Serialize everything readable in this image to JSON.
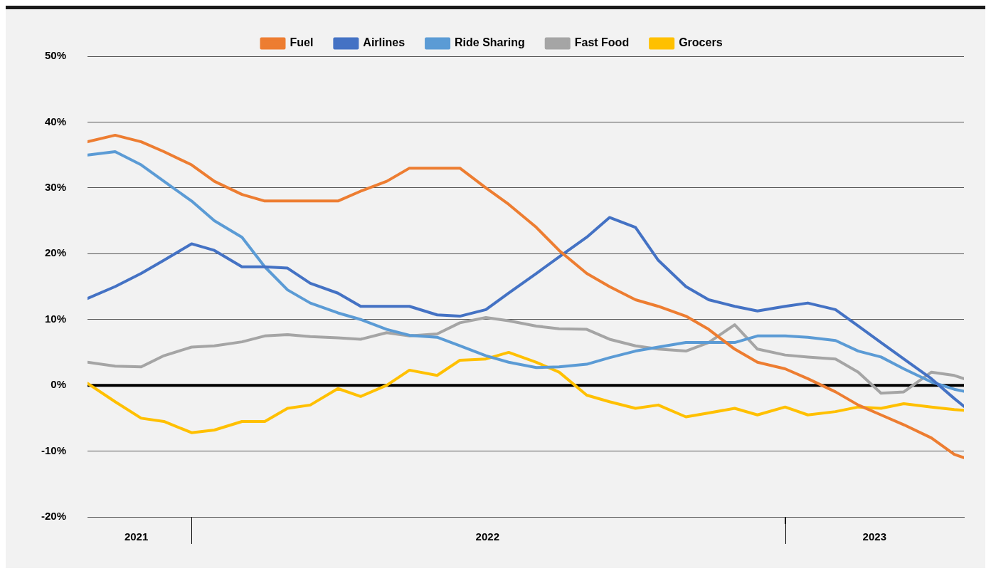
{
  "chart_data": {
    "type": "line",
    "legend": "top",
    "grid": "y",
    "line_style": "solid",
    "x": [
      "2021-10-29",
      "2021-11-15",
      "2021-12-01",
      "2021-12-15",
      "2022-01-01",
      "2022-01-15",
      "2022-02-01",
      "2022-02-15",
      "2022-03-01",
      "2022-03-15",
      "2022-04-01",
      "2022-04-15",
      "2022-05-01",
      "2022-05-15",
      "2022-06-01",
      "2022-06-15",
      "2022-07-01",
      "2022-07-15",
      "2022-08-01",
      "2022-08-15",
      "2022-09-01",
      "2022-09-15",
      "2022-10-01",
      "2022-10-15",
      "2022-11-01",
      "2022-11-15",
      "2022-12-01",
      "2022-12-15",
      "2023-01-01",
      "2023-01-15",
      "2023-02-01",
      "2023-02-15",
      "2023-03-01",
      "2023-03-15",
      "2023-04-01",
      "2023-04-15",
      "2023-04-21"
    ],
    "xlim": [
      "2021-10-29",
      "2023-04-21"
    ],
    "xticks": [
      {
        "value": "2021-11-28",
        "label": "2021"
      },
      {
        "value": "2022-01-01",
        "label": null
      },
      {
        "value": "2022-07-02",
        "label": "2022"
      },
      {
        "value": "2023-01-01",
        "label": null
      },
      {
        "value": "2023-02-25",
        "label": "2023"
      }
    ],
    "ylim": [
      -20,
      50
    ],
    "yticks": [
      {
        "value": -20,
        "label": "-20%"
      },
      {
        "value": -10,
        "label": "-10%"
      },
      {
        "value": 0,
        "label": "0%"
      },
      {
        "value": 10,
        "label": "10%"
      },
      {
        "value": 20,
        "label": "20%"
      },
      {
        "value": 30,
        "label": "30%"
      },
      {
        "value": 40,
        "label": "40%"
      },
      {
        "value": 50,
        "label": "50%"
      }
    ],
    "ref_lines": [
      {
        "axis": "y",
        "value": 0,
        "color": "#000000"
      }
    ],
    "series": [
      {
        "name": "Fuel",
        "color": "#ed7d31",
        "values": [
          37,
          38,
          37,
          35.5,
          33.5,
          31,
          29,
          28,
          28,
          28,
          28,
          29.5,
          31,
          33,
          33,
          33,
          30,
          27.5,
          24,
          20.5,
          17,
          15,
          13,
          12,
          10.5,
          8.5,
          5.5,
          3.5,
          2.5,
          1,
          -1,
          -3,
          -4.5,
          -6,
          -8,
          -10.5,
          -11
        ]
      },
      {
        "name": "Airlines",
        "color": "#4472c4",
        "values": [
          13.2,
          15,
          17,
          19,
          21.5,
          20.5,
          18,
          18,
          17.8,
          15.5,
          14,
          12,
          12,
          12,
          10.7,
          10.5,
          11.5,
          14,
          17,
          19.5,
          22.5,
          25.5,
          24,
          19,
          15,
          13,
          12,
          11.3,
          12,
          12.5,
          11.5,
          9,
          6.5,
          4,
          1,
          -2,
          -3.2
        ]
      },
      {
        "name": "Ride Sharing",
        "color": "#5b9bd5",
        "values": [
          35,
          35.5,
          33.5,
          31,
          28,
          25,
          22.5,
          18,
          14.5,
          12.5,
          11,
          10,
          8.5,
          7.6,
          7.3,
          6,
          4.5,
          3.5,
          2.7,
          2.8,
          3.2,
          4.2,
          5.2,
          5.8,
          6.5,
          6.5,
          6.5,
          7.5,
          7.5,
          7.3,
          6.8,
          5.2,
          4.3,
          2.5,
          0.5,
          -0.6,
          -0.9
        ]
      },
      {
        "name": "Fast Food",
        "color": "#a5a5a5",
        "values": [
          3.5,
          2.9,
          2.8,
          4.5,
          5.8,
          6,
          6.6,
          7.5,
          7.7,
          7.4,
          7.2,
          7,
          8,
          7.5,
          7.8,
          9.5,
          10.3,
          9.8,
          9,
          8.6,
          8.5,
          7,
          6,
          5.5,
          5.2,
          6.5,
          9.2,
          5.5,
          4.6,
          4.3,
          4,
          2,
          -1.2,
          -1,
          2,
          1.5,
          1
        ]
      },
      {
        "name": "Grocers",
        "color": "#ffc000",
        "values": [
          0.3,
          -2.5,
          -5,
          -5.5,
          -7.2,
          -6.8,
          -5.5,
          -5.5,
          -3.5,
          -3,
          -0.5,
          -1.7,
          0,
          2.3,
          1.5,
          3.8,
          4,
          5,
          3.5,
          2,
          -1.5,
          -2.5,
          -3.5,
          -3,
          -4.8,
          -4.2,
          -3.5,
          -4.5,
          -3.3,
          -4.5,
          -4,
          -3.3,
          -3.5,
          -2.8,
          -3.3,
          -3.7,
          -3.8
        ]
      }
    ]
  }
}
